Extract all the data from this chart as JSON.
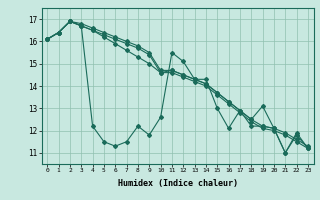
{
  "xlabel": "Humidex (Indice chaleur)",
  "ylabel": "",
  "background_color": "#c8e8e0",
  "line_color": "#1a6b5a",
  "xlim": [
    -0.5,
    23.5
  ],
  "ylim": [
    10.5,
    17.5
  ],
  "yticks": [
    11,
    12,
    13,
    14,
    15,
    16,
    17
  ],
  "xticks": [
    0,
    1,
    2,
    3,
    4,
    5,
    6,
    7,
    8,
    9,
    10,
    11,
    12,
    13,
    14,
    15,
    16,
    17,
    18,
    19,
    20,
    21,
    22,
    23
  ],
  "series": [
    [
      16.1,
      16.4,
      16.9,
      16.7,
      12.2,
      11.5,
      11.3,
      11.5,
      12.2,
      11.8,
      12.6,
      15.5,
      15.1,
      14.3,
      14.3,
      13.0,
      12.1,
      12.9,
      12.2,
      12.2,
      12.1,
      11.0,
      11.8,
      11.2
    ],
    [
      16.1,
      16.4,
      16.9,
      16.7,
      16.5,
      16.3,
      16.1,
      15.9,
      15.7,
      15.4,
      14.6,
      14.6,
      14.4,
      14.2,
      14.0,
      13.6,
      13.2,
      12.8,
      12.4,
      12.1,
      12.0,
      11.8,
      11.5,
      11.2
    ],
    [
      16.1,
      16.4,
      16.9,
      16.8,
      16.6,
      16.4,
      16.2,
      16.0,
      15.8,
      15.5,
      14.7,
      14.7,
      14.5,
      14.3,
      14.1,
      13.7,
      13.3,
      12.9,
      12.5,
      12.2,
      12.1,
      11.9,
      11.6,
      11.3
    ],
    [
      16.1,
      16.4,
      16.9,
      16.7,
      16.5,
      16.2,
      15.9,
      15.6,
      15.3,
      15.0,
      14.6,
      14.7,
      14.5,
      14.3,
      14.1,
      13.7,
      13.3,
      12.9,
      12.5,
      13.1,
      12.1,
      11.0,
      11.9,
      11.2
    ]
  ]
}
